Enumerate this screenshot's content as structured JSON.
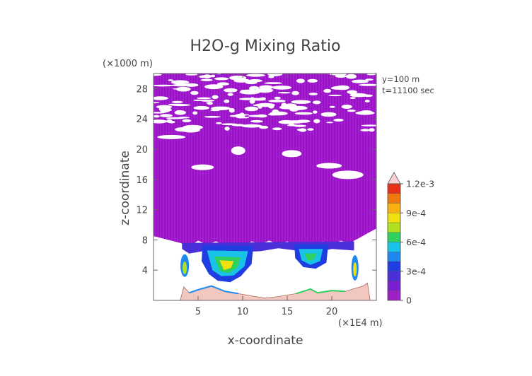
{
  "chart_data": {
    "type": "heatmap",
    "title": "H2O-g Mixing Ratio",
    "xlabel": "x-coordinate",
    "ylabel": "z-coordinate",
    "x_unit": "(×1E4 m)",
    "y_unit": "(×1000 m)",
    "annotations": [
      "y=100  m",
      "t=11100 sec"
    ],
    "xlim": [
      0,
      25
    ],
    "ylim": [
      0,
      30
    ],
    "x_ticks": [
      5,
      10,
      15,
      20
    ],
    "y_ticks": [
      4,
      8,
      12,
      16,
      20,
      24,
      28
    ],
    "colorbar": {
      "ticks": [
        {
          "label": "1.2e-3",
          "value": 0.0012
        },
        {
          "label": "9e-4",
          "value": 0.0009
        },
        {
          "label": "6e-4",
          "value": 0.0006
        },
        {
          "label": "3e-4",
          "value": 0.0003
        },
        {
          "label": "0",
          "value": 0
        }
      ],
      "levels": [
        0,
        0.0001,
        0.0002,
        0.0003,
        0.0004,
        0.0005,
        0.0006,
        0.0007,
        0.0008,
        0.0009,
        0.001,
        0.0011,
        0.0012
      ],
      "colors": [
        "#a020c8",
        "#7a1fd0",
        "#4b2fd8",
        "#1f3de0",
        "#1e88ee",
        "#19c3e8",
        "#30d060",
        "#b0e020",
        "#f0e010",
        "#f8b010",
        "#f07810",
        "#e83018",
        "#f09090",
        "#f8d0d0"
      ]
    },
    "field_summary": [
      {
        "region": "upper layer, z 8-30",
        "value": 5e-05,
        "note": "mostly purple, broken white streaks above z 20"
      },
      {
        "region": "mid layer, z 3-8, x 5-11",
        "value": 0.0007,
        "note": "yellow/green core"
      },
      {
        "region": "mid layer, z 3-8, x 16-19",
        "value": 0.0005,
        "note": "cyan/green core"
      },
      {
        "region": "terrain, z 0-1.5",
        "value": 0.0012,
        "note": "pink terrain band"
      }
    ]
  }
}
